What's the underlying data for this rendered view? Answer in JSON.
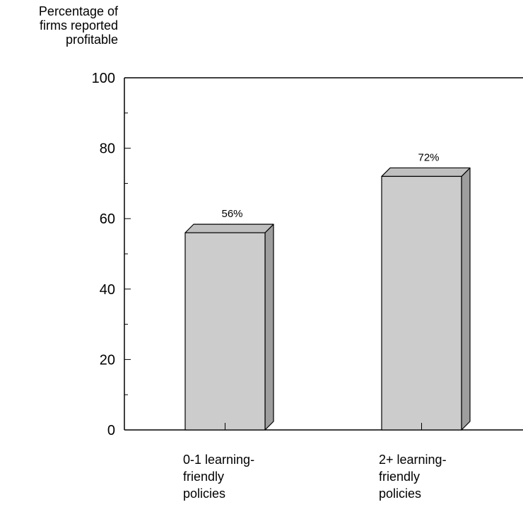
{
  "chart_data": {
    "type": "bar",
    "style": "3d",
    "title": "",
    "ylabel": "Percentage of\nfirms reported\nprofitable",
    "xlabel": "",
    "ylim": [
      0,
      100
    ],
    "yticks": [
      0,
      20,
      40,
      60,
      80,
      100
    ],
    "categories": [
      "0-1 learning-\nfriendly\npolicies",
      "2+ learning-\nfriendly\npolicies"
    ],
    "values": [
      56,
      72
    ],
    "data_labels": [
      "56%",
      "72%"
    ],
    "grid": false,
    "colors": {
      "bar_front": "#cccccc",
      "bar_top": "#bfbfbf",
      "bar_side": "#9e9e9e",
      "axis": "#000000"
    }
  }
}
